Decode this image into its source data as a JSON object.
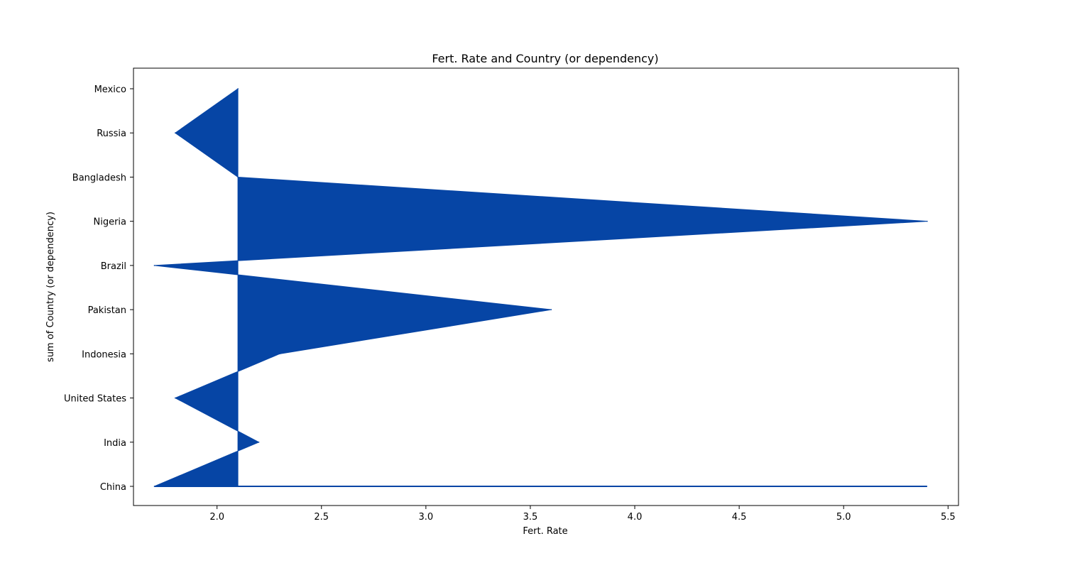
{
  "chart_data": {
    "type": "area",
    "orientation": "horizontal",
    "title": "Fert. Rate and Country (or dependency)",
    "xlabel": "Fert. Rate",
    "ylabel": "sum of Country (or dependency)",
    "categories": [
      "China",
      "India",
      "United States",
      "Indonesia",
      "Pakistan",
      "Brazil",
      "Nigeria",
      "Bangladesh",
      "Russia",
      "Mexico"
    ],
    "values": [
      1.7,
      2.2,
      1.8,
      2.3,
      3.6,
      1.7,
      5.4,
      2.1,
      1.8,
      2.1
    ],
    "baseline": 2.1,
    "xlim": [
      1.6,
      5.55
    ],
    "xticks": [
      2.0,
      2.5,
      3.0,
      3.5,
      4.0,
      4.5,
      5.0,
      5.5
    ],
    "xtick_labels": [
      "2.0",
      "2.5",
      "3.0",
      "3.5",
      "4.0",
      "4.5",
      "5.0",
      "5.5"
    ],
    "series_color": "#0645a5",
    "grid": false,
    "legend": "none"
  }
}
